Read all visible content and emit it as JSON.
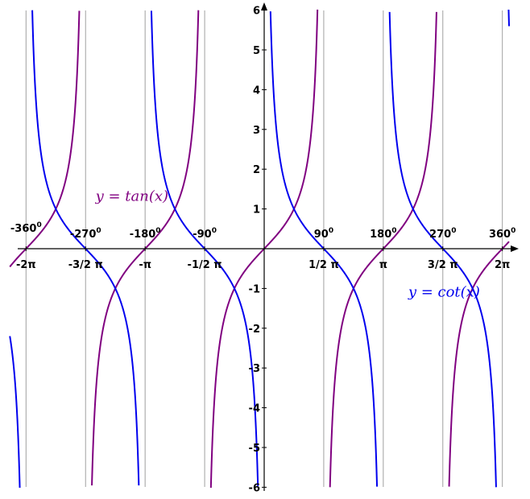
{
  "chart_data": {
    "type": "line",
    "title": "",
    "xlabel": "",
    "ylabel": "",
    "xlim": [
      -6.71,
      6.46
    ],
    "ylim": [
      -6,
      6
    ],
    "grid": "vertical lines at multiples of pi/2",
    "series": [
      {
        "name": "tan",
        "label": "y = tan(x)",
        "function": "tan",
        "color": "#800080"
      },
      {
        "name": "cot",
        "label": "y = cot(x)",
        "function": "cot",
        "color": "#0000ee"
      }
    ],
    "y_ticks": [
      "-6",
      "-5",
      "-4",
      "-3",
      "-2",
      "-1",
      "1",
      "2",
      "3",
      "4",
      "5",
      "6"
    ],
    "x_ticks_radians": [
      {
        "value": -6.2832,
        "label": "-2π"
      },
      {
        "value": -4.7124,
        "label": "-3/2 π"
      },
      {
        "value": -3.1416,
        "label": "-π"
      },
      {
        "value": -1.5708,
        "label": "-1/2 π"
      },
      {
        "value": 1.5708,
        "label": "1/2 π"
      },
      {
        "value": 3.1416,
        "label": "π"
      },
      {
        "value": 4.7124,
        "label": "3/2 π"
      },
      {
        "value": 6.2832,
        "label": "2π"
      }
    ],
    "x_ticks_degrees": [
      {
        "value": -6.2832,
        "label": "-360",
        "sup": "0"
      },
      {
        "value": -4.7124,
        "label": "-270",
        "sup": "0"
      },
      {
        "value": -3.1416,
        "label": "-180",
        "sup": "0"
      },
      {
        "value": -1.5708,
        "label": "-90",
        "sup": "0"
      },
      {
        "value": 1.5708,
        "label": "90",
        "sup": "0"
      },
      {
        "value": 3.1416,
        "label": "180",
        "sup": "0"
      },
      {
        "value": 4.7124,
        "label": "270",
        "sup": "0"
      },
      {
        "value": 6.2832,
        "label": "360",
        "sup": "0"
      }
    ],
    "annotations": [
      {
        "text": "y = tan(x)",
        "series": "tan",
        "x": -4.45,
        "y": 1.2
      },
      {
        "text": "y = cot(x)",
        "series": "cot",
        "x": 3.8,
        "y": -1.2
      }
    ]
  }
}
